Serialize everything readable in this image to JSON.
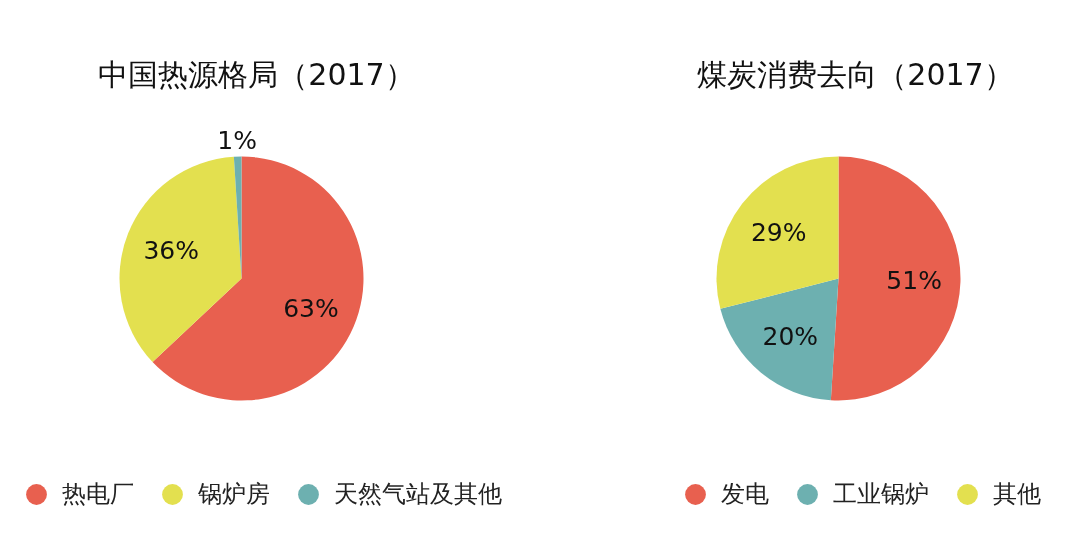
{
  "chart_data": [
    {
      "type": "pie",
      "title": "中国热源格局（2017）",
      "categories": [
        "热电厂",
        "锅炉房",
        "天然气站及其他"
      ],
      "values": [
        63,
        36,
        1
      ],
      "colors": [
        "#e8604f",
        "#e3e04f",
        "#6db0b0"
      ],
      "value_labels": [
        "63%",
        "36%",
        "1%"
      ],
      "legend": "bottom"
    },
    {
      "type": "pie",
      "title": "煤炭消费去向（2017）",
      "categories": [
        "发电",
        "工业锅炉",
        "其他"
      ],
      "values": [
        51,
        20,
        29
      ],
      "colors": [
        "#e8604f",
        "#6db0b0",
        "#e3e04f"
      ],
      "value_labels": [
        "51%",
        "20%",
        "29%"
      ],
      "legend": "bottom"
    }
  ]
}
